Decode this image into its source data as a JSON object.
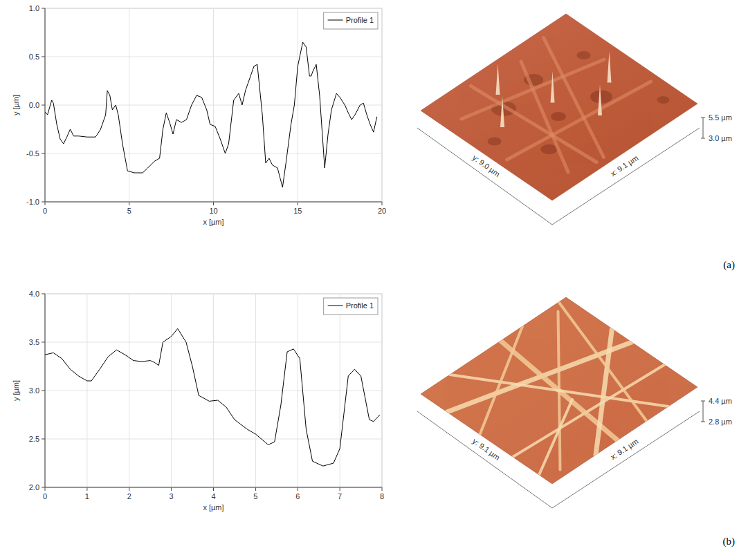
{
  "chart_data": [
    {
      "type": "line",
      "xlabel": "x [µm]",
      "ylabel": "y [µm]",
      "legend": "upper right",
      "grid": true,
      "xlim": [
        0,
        20
      ],
      "ylim": [
        -1,
        1
      ],
      "xticks": [
        0,
        5,
        10,
        15,
        20
      ],
      "yticks": [
        {
          "value": -1,
          "label": "-1.0"
        },
        {
          "value": -0.5,
          "label": "-0.5"
        },
        {
          "value": 0,
          "label": "0.0"
        },
        {
          "value": 0.5,
          "label": "0.5"
        },
        {
          "value": 1,
          "label": "1.0"
        }
      ],
      "x": [
        0,
        0.15,
        0.4,
        0.5,
        0.7,
        0.9,
        1.1,
        1.3,
        1.5,
        1.7,
        2,
        2.5,
        3,
        3.3,
        3.6,
        3.7,
        3.85,
        4,
        4.2,
        4.35,
        4.6,
        4.9,
        5.3,
        5.8,
        6.1,
        6.5,
        6.8,
        7,
        7.2,
        7.4,
        7.6,
        7.8,
        8.1,
        8.4,
        8.7,
        9,
        9.3,
        9.6,
        9.8,
        10.1,
        10.4,
        10.7,
        10.9,
        11.2,
        11.5,
        11.7,
        11.9,
        12.1,
        12.4,
        12.6,
        12.9,
        13.1,
        13.3,
        13.5,
        13.8,
        14.1,
        14.3,
        14.6,
        14.8,
        15,
        15.3,
        15.5,
        15.7,
        15.8,
        15.9,
        16.1,
        16.3,
        16.6,
        16.8,
        17,
        17.3,
        17.5,
        17.8,
        18,
        18.2,
        18.4,
        18.7,
        18.9,
        19.1,
        19.3,
        19.5,
        19.7
      ],
      "series": [
        {
          "name": "Profile 1",
          "color": "#000000",
          "values": [
            -0.07,
            -0.1,
            0.05,
            0.02,
            -0.2,
            -0.35,
            -0.4,
            -0.33,
            -0.25,
            -0.32,
            -0.32,
            -0.33,
            -0.33,
            -0.25,
            -0.1,
            0.15,
            0.1,
            -0.05,
            0,
            -0.1,
            -0.4,
            -0.68,
            -0.7,
            -0.7,
            -0.65,
            -0.58,
            -0.55,
            -0.25,
            -0.08,
            -0.18,
            -0.3,
            -0.15,
            -0.18,
            -0.15,
            0,
            0.1,
            0.08,
            -0.05,
            -0.2,
            -0.22,
            -0.35,
            -0.5,
            -0.4,
            0.05,
            0.12,
            0,
            0.15,
            0.25,
            0.4,
            0.42,
            -0.1,
            -0.6,
            -0.55,
            -0.62,
            -0.65,
            -0.85,
            -0.6,
            -0.2,
            0,
            0.4,
            0.65,
            0.6,
            0.3,
            0.3,
            0.35,
            0.42,
            0.1,
            -0.65,
            -0.3,
            -0.05,
            0.12,
            0.08,
            0,
            -0.08,
            -0.15,
            -0.1,
            0,
            0.02,
            -0.1,
            -0.2,
            -0.28,
            -0.12
          ]
        }
      ]
    },
    {
      "type": "surface",
      "xlabel": "x: 9.1 µm",
      "ylabel": "y: 9.0 µm",
      "zlim": [
        3.0,
        5.5
      ],
      "zticks": [
        {
          "value": 5.5,
          "label": "5.5 µm"
        },
        {
          "value": 3.0,
          "label": "3.0 µm"
        }
      ]
    },
    {
      "type": "line",
      "xlabel": "x [µm]",
      "ylabel": "y [µm]",
      "legend": "upper right",
      "grid": true,
      "xlim": [
        0,
        8
      ],
      "ylim": [
        2,
        4
      ],
      "xticks": [
        0,
        1,
        2,
        3,
        4,
        5,
        6,
        7,
        8
      ],
      "yticks": [
        {
          "value": 2,
          "label": "2.0"
        },
        {
          "value": 2.5,
          "label": "2.5"
        },
        {
          "value": 3,
          "label": "3.0"
        },
        {
          "value": 3.5,
          "label": "3.5"
        },
        {
          "value": 4,
          "label": "4.0"
        }
      ],
      "x": [
        0,
        0.2,
        0.4,
        0.6,
        0.8,
        1,
        1.1,
        1.3,
        1.5,
        1.7,
        1.9,
        2.1,
        2.3,
        2.5,
        2.6,
        2.7,
        2.8,
        3,
        3.15,
        3.35,
        3.5,
        3.65,
        3.9,
        4.1,
        4.3,
        4.5,
        4.8,
        5,
        5.3,
        5.45,
        5.6,
        5.75,
        5.9,
        6.05,
        6.2,
        6.35,
        6.6,
        6.85,
        7,
        7.2,
        7.35,
        7.5,
        7.7,
        7.8,
        7.95
      ],
      "series": [
        {
          "name": "Profile 1",
          "color": "#000000",
          "values": [
            3.37,
            3.39,
            3.33,
            3.22,
            3.15,
            3.1,
            3.1,
            3.22,
            3.35,
            3.42,
            3.37,
            3.31,
            3.3,
            3.31,
            3.29,
            3.26,
            3.5,
            3.56,
            3.64,
            3.5,
            3.25,
            2.95,
            2.89,
            2.9,
            2.83,
            2.7,
            2.6,
            2.55,
            2.44,
            2.47,
            2.85,
            3.4,
            3.43,
            3.33,
            2.6,
            2.27,
            2.22,
            2.25,
            2.4,
            3.15,
            3.22,
            3.15,
            2.7,
            2.68,
            2.75
          ]
        }
      ]
    },
    {
      "type": "surface",
      "xlabel": "x: 9.1 µm",
      "ylabel": "y: 9.1 µm",
      "zlim": [
        2.8,
        4.4
      ],
      "zticks": [
        {
          "value": 4.4,
          "label": "4.4 µm"
        },
        {
          "value": 2.8,
          "label": "2.8 µm"
        }
      ]
    }
  ],
  "panel_labels": [
    "(a)",
    "(b)"
  ]
}
